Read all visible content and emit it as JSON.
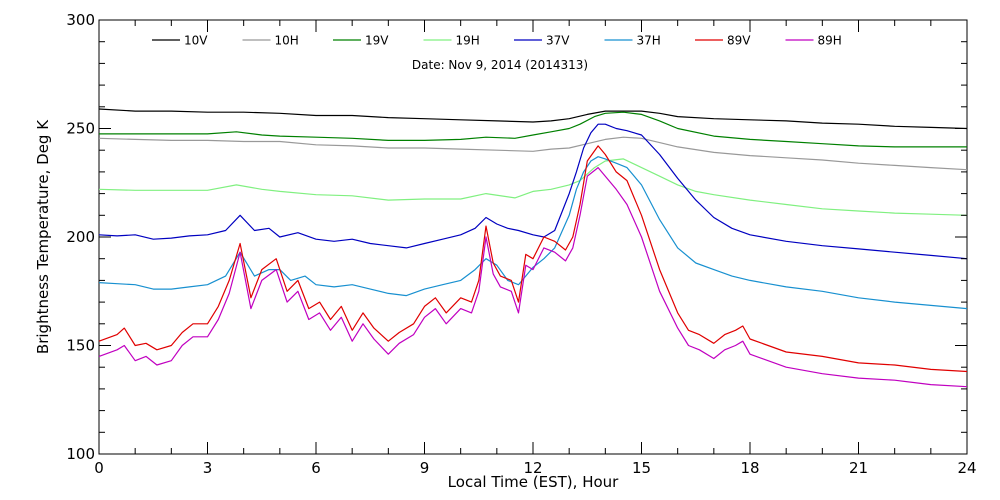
{
  "chart_data": {
    "type": "line",
    "title": "",
    "subtitle": "Date: Nov  9, 2014 (2014313)",
    "xlabel": "Local Time (EST), Hour",
    "ylabel": "Brightness Temperature, Deg K",
    "xlim": [
      0,
      24
    ],
    "ylim": [
      100,
      300
    ],
    "xticks": [
      0,
      3,
      6,
      9,
      12,
      15,
      18,
      21,
      24
    ],
    "yticks": [
      100,
      150,
      200,
      250,
      300
    ],
    "grid": false,
    "legend_position": "top",
    "series": [
      {
        "name": "10V",
        "color": "#000000",
        "x": [
          0,
          1,
          2,
          3,
          4,
          5,
          6,
          7,
          8,
          9,
          10,
          11,
          12,
          12.5,
          13,
          13.5,
          14,
          14.5,
          15,
          15.5,
          16,
          17,
          18,
          19,
          20,
          21,
          22,
          23,
          24
        ],
        "y": [
          259,
          258,
          258,
          257.5,
          257.5,
          257,
          256,
          256,
          255,
          254.5,
          254,
          253.5,
          253,
          253.5,
          254.5,
          256.5,
          258,
          258,
          258,
          257,
          255.5,
          254.5,
          254,
          253.5,
          252.5,
          252,
          251,
          250.5,
          250
        ]
      },
      {
        "name": "10H",
        "color": "#999999",
        "x": [
          0,
          1,
          2,
          3,
          4,
          5,
          6,
          7,
          8,
          9,
          10,
          11,
          12,
          12.5,
          13,
          13.5,
          14,
          14.5,
          15,
          15.5,
          16,
          17,
          18,
          19,
          20,
          21,
          22,
          23,
          24
        ],
        "y": [
          245.5,
          245,
          244.5,
          244.5,
          244,
          244,
          242.5,
          242,
          241,
          241,
          240.5,
          240,
          239.5,
          240.5,
          241,
          243,
          245,
          246,
          245.5,
          243.5,
          241.5,
          239,
          237.5,
          236.5,
          235.5,
          234,
          233,
          232,
          231
        ]
      },
      {
        "name": "19V",
        "color": "#008000",
        "x": [
          0,
          1,
          2,
          3,
          3.8,
          4.5,
          5,
          6,
          7,
          8,
          9,
          10,
          10.7,
          11.5,
          12,
          12.5,
          13,
          13.3,
          13.7,
          14,
          14.5,
          15,
          15.5,
          16,
          17,
          18,
          19,
          20,
          21,
          22,
          23,
          24
        ],
        "y": [
          247.5,
          247.5,
          247.5,
          247.5,
          248.5,
          247,
          246.5,
          246,
          245.5,
          244.5,
          244.5,
          245,
          246,
          245.5,
          247,
          248.5,
          250,
          252,
          255.5,
          257,
          257.5,
          256.5,
          253.5,
          250,
          246.5,
          245,
          244,
          243,
          242,
          241.5,
          241.5,
          241.5
        ]
      },
      {
        "name": "19H",
        "color": "#80f080",
        "x": [
          0,
          1,
          2,
          3,
          3.8,
          4.5,
          5,
          6,
          7,
          8,
          9,
          10,
          10.7,
          11.5,
          12,
          12.5,
          13,
          13.3,
          13.7,
          14,
          14.5,
          15,
          15.5,
          16,
          16.5,
          17,
          18,
          19,
          20,
          21,
          22,
          23,
          24
        ],
        "y": [
          222,
          221.5,
          221.5,
          221.5,
          224,
          222,
          221,
          219.5,
          219,
          217,
          217.5,
          217.5,
          220,
          218,
          221,
          222,
          224,
          226,
          232,
          235,
          236,
          232,
          228,
          224,
          221,
          219.5,
          217,
          215,
          213,
          212,
          211,
          210.5,
          210
        ]
      },
      {
        "name": "37V",
        "color": "#0000c0",
        "x": [
          0,
          0.5,
          1,
          1.5,
          2,
          2.5,
          3,
          3.5,
          3.9,
          4.3,
          4.7,
          5,
          5.5,
          6,
          6.5,
          7,
          7.5,
          8,
          8.5,
          9,
          9.5,
          10,
          10.4,
          10.7,
          11,
          11.3,
          11.6,
          12,
          12.3,
          12.6,
          13,
          13.2,
          13.4,
          13.6,
          13.8,
          14,
          14.3,
          14.6,
          15,
          15.5,
          16,
          16.5,
          17,
          17.5,
          18,
          19,
          20,
          21,
          22,
          23,
          24
        ],
        "y": [
          201,
          200.5,
          201,
          199,
          199.5,
          200.5,
          201,
          203,
          210,
          203,
          204,
          200,
          202,
          199,
          198,
          199,
          197,
          196,
          195,
          197,
          199,
          201,
          204,
          209,
          206,
          204,
          203,
          201,
          200,
          203,
          220,
          230,
          241,
          248,
          252,
          252,
          250,
          249,
          247,
          238,
          227,
          217,
          209,
          204,
          201,
          198,
          196,
          194.5,
          193,
          191.5,
          190
        ]
      },
      {
        "name": "37H",
        "color": "#1890d0",
        "x": [
          0,
          0.5,
          1,
          1.5,
          2,
          2.5,
          3,
          3.5,
          3.9,
          4.3,
          4.7,
          5,
          5.3,
          5.7,
          6,
          6.5,
          7,
          7.5,
          8,
          8.5,
          9,
          9.5,
          10,
          10.4,
          10.7,
          11,
          11.3,
          11.6,
          12,
          12.3,
          12.6,
          13,
          13.2,
          13.4,
          13.6,
          13.8,
          14,
          14.3,
          14.6,
          15,
          15.5,
          16,
          16.5,
          17,
          17.5,
          18,
          19,
          20,
          21,
          22,
          23,
          24
        ],
        "y": [
          179,
          178.5,
          178,
          176,
          176,
          177,
          178,
          182,
          193,
          182,
          185,
          185,
          180,
          182,
          178,
          177,
          178,
          176,
          174,
          173,
          176,
          178,
          180,
          185,
          190,
          187,
          180,
          178,
          186,
          190,
          195,
          210,
          222,
          230,
          235,
          237,
          236,
          234,
          232,
          224,
          208,
          195,
          188,
          185,
          182,
          180,
          177,
          175,
          172,
          170,
          168.5,
          167
        ]
      },
      {
        "name": "89V",
        "color": "#e00000",
        "x": [
          0,
          0.5,
          0.7,
          1,
          1.3,
          1.6,
          2,
          2.3,
          2.6,
          3,
          3.3,
          3.6,
          3.9,
          4.2,
          4.5,
          4.9,
          5.2,
          5.5,
          5.8,
          6.1,
          6.4,
          6.7,
          7,
          7.3,
          7.6,
          8,
          8.3,
          8.7,
          9,
          9.3,
          9.6,
          10,
          10.3,
          10.5,
          10.7,
          10.9,
          11.1,
          11.4,
          11.6,
          11.8,
          12,
          12.3,
          12.6,
          12.9,
          13.1,
          13.3,
          13.5,
          13.8,
          14,
          14.3,
          14.6,
          15,
          15.5,
          16,
          16.3,
          16.6,
          17,
          17.3,
          17.6,
          17.8,
          18,
          18.5,
          19,
          20,
          21,
          22,
          23,
          24
        ],
        "y": [
          152,
          155,
          158,
          150,
          151,
          148,
          150,
          156,
          160,
          160,
          168,
          180,
          197,
          172,
          185,
          190,
          175,
          180,
          167,
          170,
          162,
          168,
          157,
          165,
          158,
          152,
          156,
          160,
          168,
          172,
          165,
          172,
          170,
          180,
          205,
          188,
          182,
          180,
          170,
          192,
          190,
          200,
          198,
          194,
          200,
          215,
          235,
          242,
          238,
          230,
          226,
          210,
          185,
          165,
          157,
          155,
          151,
          155,
          157,
          159,
          153,
          150,
          147,
          145,
          142,
          141,
          139,
          138
        ]
      },
      {
        "name": "89H",
        "color": "#c000c0",
        "x": [
          0,
          0.5,
          0.7,
          1,
          1.3,
          1.6,
          2,
          2.3,
          2.6,
          3,
          3.3,
          3.6,
          3.9,
          4.2,
          4.5,
          4.9,
          5.2,
          5.5,
          5.8,
          6.1,
          6.4,
          6.7,
          7,
          7.3,
          7.6,
          8,
          8.3,
          8.7,
          9,
          9.3,
          9.6,
          10,
          10.3,
          10.5,
          10.7,
          10.9,
          11.1,
          11.4,
          11.6,
          11.8,
          12,
          12.3,
          12.6,
          12.9,
          13.1,
          13.3,
          13.5,
          13.8,
          14,
          14.3,
          14.6,
          15,
          15.5,
          16,
          16.3,
          16.6,
          17,
          17.3,
          17.6,
          17.8,
          18,
          18.5,
          19,
          20,
          21,
          22,
          23,
          24
        ],
        "y": [
          145,
          148,
          150,
          143,
          145,
          141,
          143,
          150,
          154,
          154,
          162,
          174,
          193,
          167,
          180,
          185,
          170,
          175,
          162,
          165,
          157,
          163,
          152,
          160,
          153,
          146,
          151,
          155,
          163,
          167,
          160,
          167,
          165,
          175,
          200,
          183,
          177,
          175,
          165,
          187,
          185,
          195,
          193,
          189,
          195,
          210,
          228,
          232,
          228,
          222,
          215,
          200,
          175,
          158,
          150,
          148,
          144,
          148,
          150,
          152,
          146,
          143,
          140,
          137,
          135,
          134,
          132,
          131
        ]
      }
    ]
  }
}
